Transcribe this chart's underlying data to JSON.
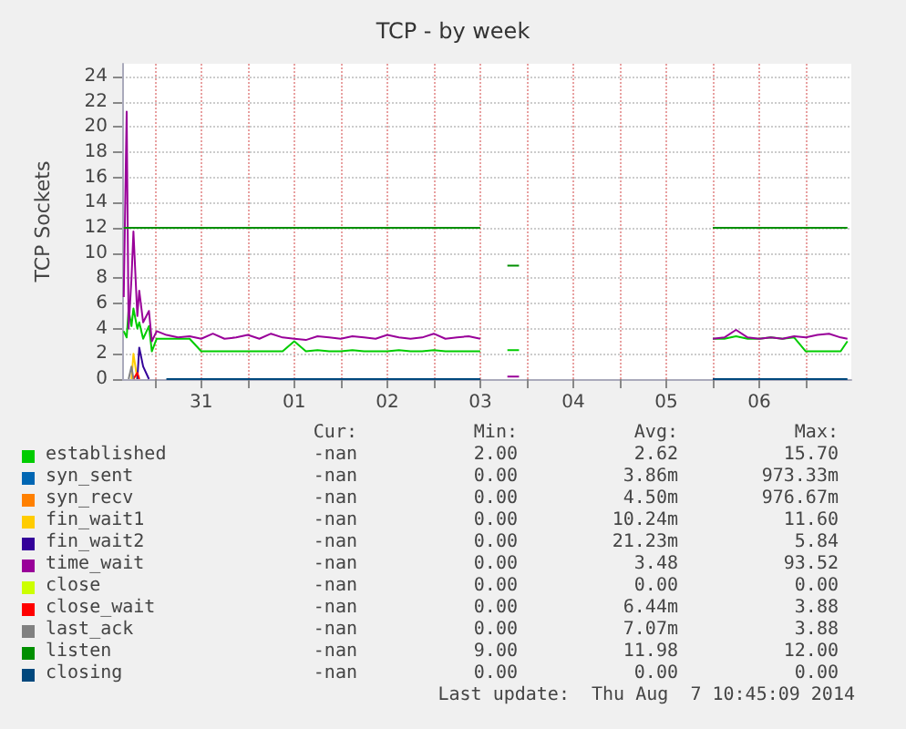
{
  "chart_data": {
    "type": "line",
    "title": "TCP - by week",
    "ylabel": "TCP Sockets",
    "x": [
      "2014-07-30T16:00",
      "2014-07-30T16:45",
      "2014-07-30T17:15",
      "2014-07-30T18:00",
      "2014-07-30T18:30",
      "2014-07-30T19:30",
      "2014-07-30T20:00",
      "2014-07-30T21:00",
      "2014-07-30T22:30",
      "2014-07-30T23:15",
      "2014-07-31T00:30",
      "2014-07-31T03:00",
      "2014-07-31T06:00",
      "2014-07-31T09:00",
      "2014-07-31T12:00",
      "2014-07-31T15:00",
      "2014-07-31T18:00",
      "2014-07-31T21:00",
      "2014-08-01T00:00",
      "2014-08-01T03:00",
      "2014-08-01T06:00",
      "2014-08-01T09:00",
      "2014-08-01T12:00",
      "2014-08-01T15:00",
      "2014-08-01T18:00",
      "2014-08-01T21:00",
      "2014-08-02T00:00",
      "2014-08-02T03:00",
      "2014-08-02T06:00",
      "2014-08-02T09:00",
      "2014-08-02T12:00",
      "2014-08-02T15:00",
      "2014-08-02T18:00",
      "2014-08-02T21:00",
      "2014-08-03T00:00",
      "2014-08-03T03:00",
      "2014-08-03T06:00",
      "2014-08-03T09:00",
      "2014-08-03T12:00",
      "2014-08-03T14:30",
      "2014-08-03T19:00",
      "2014-08-03T22:00",
      "2014-08-05T21:30",
      "2014-08-06T00:00",
      "2014-08-06T03:00",
      "2014-08-06T06:00",
      "2014-08-06T09:00",
      "2014-08-06T12:00",
      "2014-08-06T15:00",
      "2014-08-06T18:00",
      "2014-08-06T21:00",
      "2014-08-07T00:00",
      "2014-08-07T03:00",
      "2014-08-07T06:00",
      "2014-08-07T09:00",
      "2014-08-07T10:45"
    ],
    "xlim": [
      "2014-07-30T15:35",
      "2014-08-07T11:45"
    ],
    "xticks": [
      {
        "value": "2014-07-31T00:00",
        "label": null
      },
      {
        "value": "2014-07-31T12:00",
        "label": "31"
      },
      {
        "value": "2014-08-01T00:00",
        "label": null
      },
      {
        "value": "2014-08-01T12:00",
        "label": "01"
      },
      {
        "value": "2014-08-02T00:00",
        "label": null
      },
      {
        "value": "2014-08-02T12:00",
        "label": "02"
      },
      {
        "value": "2014-08-03T00:00",
        "label": null
      },
      {
        "value": "2014-08-03T12:00",
        "label": "03"
      },
      {
        "value": "2014-08-04T00:00",
        "label": null
      },
      {
        "value": "2014-08-04T12:00",
        "label": "04"
      },
      {
        "value": "2014-08-05T00:00",
        "label": null
      },
      {
        "value": "2014-08-05T12:00",
        "label": "05"
      },
      {
        "value": "2014-08-06T00:00",
        "label": null
      },
      {
        "value": "2014-08-06T12:00",
        "label": "06"
      },
      {
        "value": "2014-08-07T00:00",
        "label": null
      }
    ],
    "ylim": [
      0,
      25
    ],
    "yticks": [
      0,
      2,
      4,
      6,
      8,
      10,
      12,
      14,
      16,
      18,
      20,
      22,
      24
    ],
    "grid": true,
    "legend": "bottom",
    "marker": "none",
    "line_style": "solid",
    "series": [
      {
        "name": "established",
        "color": "#00cc00",
        "values": [
          3.8,
          3.3,
          5.5,
          4.2,
          5.6,
          4.0,
          4.5,
          3.2,
          4.2,
          2.2,
          3.2,
          3.2,
          3.2,
          3.2,
          2.2,
          2.2,
          2.2,
          2.2,
          2.2,
          2.2,
          2.2,
          2.2,
          3.0,
          2.2,
          2.3,
          2.2,
          2.2,
          2.3,
          2.2,
          2.2,
          2.2,
          2.3,
          2.2,
          2.2,
          2.3,
          2.2,
          2.2,
          2.2,
          2.2,
          null,
          2.3,
          2.3,
          null,
          3.2,
          3.2,
          3.4,
          3.2,
          3.2,
          3.3,
          3.2,
          3.3,
          2.2,
          2.2,
          2.2,
          2.2,
          3.0
        ]
      },
      {
        "name": "syn_sent",
        "color": "#0066b3",
        "values": [
          null,
          null,
          null,
          null,
          null,
          null,
          null,
          null,
          null,
          null,
          null,
          null,
          null,
          null,
          null,
          null,
          null,
          null,
          null,
          null,
          null,
          null,
          null,
          null,
          null,
          null,
          null,
          null,
          null,
          null,
          null,
          null,
          null,
          null,
          null,
          null,
          null,
          null,
          null,
          null,
          null,
          null,
          null,
          null,
          null,
          null,
          null,
          null,
          null,
          null,
          null,
          null,
          null,
          null,
          null,
          null
        ]
      },
      {
        "name": "syn_recv",
        "color": "#ff8000",
        "values": [
          null,
          null,
          null,
          null,
          null,
          null,
          null,
          null,
          null,
          null,
          null,
          null,
          null,
          null,
          null,
          null,
          null,
          null,
          null,
          null,
          null,
          null,
          null,
          null,
          null,
          null,
          null,
          null,
          null,
          null,
          null,
          null,
          null,
          null,
          null,
          null,
          null,
          null,
          null,
          null,
          null,
          null,
          null,
          null,
          null,
          null,
          null,
          null,
          null,
          null,
          null,
          null,
          null,
          null,
          null,
          null
        ]
      },
      {
        "name": "fin_wait1",
        "color": "#ffcc00",
        "values": [
          null,
          null,
          null,
          0,
          2.0,
          0,
          null,
          null,
          null,
          null,
          null,
          null,
          null,
          null,
          null,
          null,
          null,
          null,
          null,
          null,
          null,
          null,
          null,
          null,
          null,
          null,
          null,
          null,
          null,
          null,
          null,
          null,
          null,
          null,
          null,
          null,
          null,
          null,
          null,
          null,
          null,
          null,
          null,
          null,
          null,
          null,
          null,
          null,
          null,
          null,
          null,
          null,
          null,
          null,
          null,
          null
        ]
      },
      {
        "name": "fin_wait2",
        "color": "#330099",
        "values": [
          null,
          null,
          null,
          null,
          null,
          0,
          2.5,
          1.0,
          0,
          null,
          null,
          null,
          null,
          null,
          null,
          null,
          null,
          null,
          null,
          null,
          null,
          null,
          null,
          null,
          null,
          null,
          null,
          null,
          null,
          null,
          null,
          null,
          null,
          null,
          null,
          null,
          null,
          null,
          null,
          null,
          null,
          null,
          null,
          null,
          null,
          null,
          null,
          null,
          null,
          null,
          null,
          null,
          null,
          null,
          null,
          null
        ]
      },
      {
        "name": "time_wait",
        "color": "#990099",
        "values": [
          6.5,
          21.2,
          4.0,
          8,
          11.7,
          5.0,
          7.0,
          4.5,
          5.4,
          3.0,
          3.8,
          3.5,
          3.3,
          3.4,
          3.2,
          3.6,
          3.2,
          3.3,
          3.5,
          3.2,
          3.6,
          3.3,
          3.2,
          3.1,
          3.4,
          3.3,
          3.2,
          3.4,
          3.3,
          3.2,
          3.5,
          3.3,
          3.2,
          3.3,
          3.6,
          3.2,
          3.3,
          3.4,
          3.2,
          null,
          0.2,
          0.2,
          null,
          3.2,
          3.3,
          3.9,
          3.3,
          3.2,
          3.3,
          3.2,
          3.4,
          3.3,
          3.5,
          3.6,
          3.3,
          3.2
        ]
      },
      {
        "name": "close",
        "color": "#ccff00",
        "values": [
          null,
          null,
          null,
          null,
          null,
          null,
          null,
          null,
          null,
          null,
          null,
          null,
          null,
          null,
          null,
          null,
          null,
          null,
          null,
          null,
          null,
          null,
          null,
          null,
          null,
          null,
          null,
          null,
          null,
          null,
          null,
          null,
          null,
          null,
          null,
          null,
          null,
          null,
          null,
          null,
          null,
          null,
          null,
          null,
          null,
          null,
          null,
          null,
          null,
          null,
          null,
          null,
          null,
          null,
          null,
          null
        ]
      },
      {
        "name": "close_wait",
        "color": "#ff0000",
        "values": [
          null,
          null,
          null,
          null,
          0,
          0.5,
          0,
          null,
          null,
          null,
          null,
          null,
          null,
          null,
          null,
          null,
          null,
          null,
          null,
          null,
          null,
          null,
          null,
          null,
          null,
          null,
          null,
          null,
          null,
          null,
          null,
          null,
          null,
          null,
          null,
          null,
          null,
          null,
          null,
          null,
          null,
          null,
          null,
          null,
          null,
          null,
          null,
          null,
          null,
          null,
          null,
          null,
          null,
          null,
          null,
          null
        ]
      },
      {
        "name": "last_ack",
        "color": "#808080",
        "values": [
          null,
          null,
          0,
          1.0,
          0,
          null,
          null,
          null,
          null,
          null,
          null,
          null,
          null,
          null,
          null,
          null,
          null,
          null,
          null,
          null,
          null,
          null,
          null,
          null,
          null,
          null,
          null,
          null,
          null,
          null,
          null,
          null,
          null,
          null,
          null,
          null,
          null,
          null,
          null,
          null,
          null,
          null,
          null,
          null,
          null,
          null,
          null,
          null,
          null,
          null,
          null,
          null,
          null,
          null,
          null,
          null
        ]
      },
      {
        "name": "listen",
        "color": "#008f00",
        "values": [
          12,
          12,
          12,
          12,
          12,
          12,
          12,
          12,
          12,
          12,
          12,
          12,
          12,
          12,
          12,
          12,
          12,
          12,
          12,
          12,
          12,
          12,
          12,
          12,
          12,
          12,
          12,
          12,
          12,
          12,
          12,
          12,
          12,
          12,
          12,
          12,
          12,
          12,
          12,
          null,
          9,
          9,
          null,
          12,
          12,
          12,
          12,
          12,
          12,
          12,
          12,
          12,
          12,
          12,
          12,
          12
        ]
      },
      {
        "name": "closing",
        "color": "#00487d",
        "values": [
          null,
          null,
          null,
          null,
          null,
          null,
          null,
          null,
          null,
          null,
          null,
          0,
          0,
          0,
          0,
          0,
          0,
          0,
          0,
          0,
          0,
          0,
          0,
          0,
          0,
          0,
          0,
          0,
          0,
          0,
          0,
          0,
          0,
          0,
          0,
          0,
          0,
          0,
          0,
          null,
          null,
          null,
          null,
          0,
          0,
          0,
          0,
          0,
          0,
          0,
          0,
          0,
          0,
          0,
          0,
          0
        ]
      }
    ],
    "annotations": [
      "Cur:",
      "Min:",
      "Avg:",
      "Max:",
      "-nan",
      "2.00",
      "2.62",
      "15.70",
      "-nan",
      "0.00",
      "3.86m",
      "973.33m",
      "-nan",
      "0.00",
      "4.50m",
      "976.67m",
      "-nan",
      "0.00",
      "10.24m",
      "11.60",
      "-nan",
      "0.00",
      "21.23m",
      "5.84",
      "-nan",
      "0.00",
      "3.48",
      "93.52",
      "-nan",
      "0.00",
      "0.00",
      "0.00",
      "-nan",
      "0.00",
      "6.44m",
      "3.88",
      "-nan",
      "0.00",
      "7.07m",
      "3.88",
      "-nan",
      "9.00",
      "11.98",
      "12.00",
      "-nan",
      "0.00",
      "0.00",
      "0.00",
      "Last update:  Thu Aug  7 10:45:09 2014"
    ]
  }
}
